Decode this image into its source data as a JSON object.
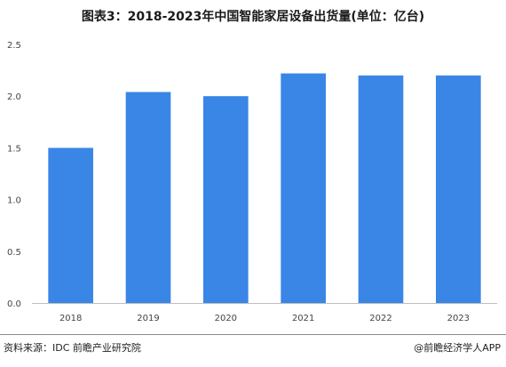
{
  "title": "图表3：2018-2023年中国智能家居设备出货量(单位：亿台)",
  "source": "资料来源：IDC 前瞻产业研究院",
  "brand": "@前瞻经济学人APP",
  "colors": {
    "bar": "#3a86e6",
    "axis": "#bfbfbf"
  },
  "chart_data": {
    "type": "bar",
    "title": "图表3：2018-2023年中国智能家居设备出货量(单位：亿台)",
    "categories": [
      "2018",
      "2019",
      "2020",
      "2021",
      "2022",
      "2023"
    ],
    "values": [
      1.5,
      2.04,
      2.0,
      2.22,
      2.2,
      2.2
    ],
    "xlabel": "",
    "ylabel": "",
    "ylim": [
      0,
      2.5
    ],
    "yticks": [
      "0.0",
      "0.5",
      "1.0",
      "1.5",
      "2.0",
      "2.5"
    ],
    "grid": false,
    "legend": "none"
  }
}
